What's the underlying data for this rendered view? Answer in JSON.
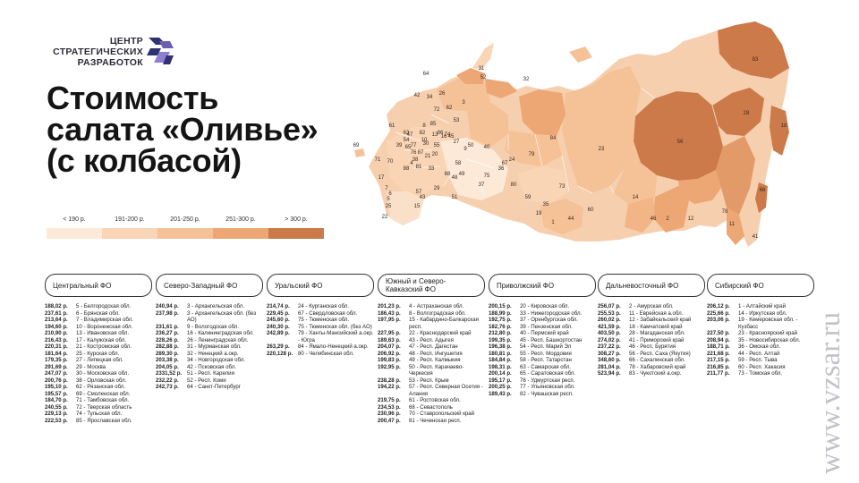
{
  "logo": {
    "line1": "ЦЕНТР",
    "line2": "СТРАТЕГИЧЕСКИХ",
    "line3": "РАЗРАБОТОК"
  },
  "title": {
    "line1": "Стоимость",
    "line2": "салата «Оливье»",
    "line3": "(с колбасой)"
  },
  "legend": [
    {
      "label": "< 190 р.",
      "color": "#fde9d8"
    },
    {
      "label": "191-200 р.",
      "color": "#f9d5b6"
    },
    {
      "label": "201-250 р.",
      "color": "#f5c197"
    },
    {
      "label": "251-300 р.",
      "color": "#eda775"
    },
    {
      "label": "> 300 р.",
      "color": "#cc7a49"
    }
  ],
  "watermark": "www.vzsar.ru",
  "map_labels": [
    "64",
    "42",
    "34",
    "26",
    "72",
    "62",
    "3",
    "52",
    "53",
    "45",
    "23",
    "31",
    "32",
    "83",
    "28",
    "18",
    "56",
    "14",
    "2",
    "78",
    "66",
    "46",
    "12",
    "11",
    "41",
    "84",
    "40",
    "67",
    "79",
    "73",
    "35",
    "19",
    "1",
    "60",
    "44",
    "59",
    "80",
    "24",
    "75",
    "36",
    "37",
    "68",
    "58",
    "74",
    "86",
    "88",
    "87",
    "21",
    "4",
    "20",
    "33",
    "48",
    "49",
    "43",
    "57",
    "15",
    "29",
    "69",
    "71",
    "17",
    "7",
    "6",
    "5",
    "25",
    "22",
    "61",
    "63",
    "82",
    "54",
    "77",
    "39",
    "47",
    "70",
    "65",
    "81",
    "30",
    "55",
    "16",
    "10",
    "76",
    "38",
    "50",
    "9",
    "27",
    "85",
    "8",
    "13",
    "51"
  ],
  "districts": [
    {
      "name": "Центральный ФО",
      "rows": [
        {
          "price": "188,02 р.",
          "region": "5 - Белгородская обл."
        },
        {
          "price": "237,61 р.",
          "region": "6 - Брянская обл."
        },
        {
          "price": "213,64 р.",
          "region": "7 - Владимирская обл."
        },
        {
          "price": "194,60 р.",
          "region": "10 - Воронежская обл."
        },
        {
          "price": "210,90 р.",
          "region": "13 - Ивановская обл."
        },
        {
          "price": "216,43 р.",
          "region": "17 - Калужская обл."
        },
        {
          "price": "220,31 р.",
          "region": "21 - Костромская обл."
        },
        {
          "price": "181,64 р.",
          "region": "25 - Курская обл."
        },
        {
          "price": "179,35 р.",
          "region": "27 - Липецкая обл."
        },
        {
          "price": "291,69 р.",
          "region": "29 - Москва"
        },
        {
          "price": "247,07 р.",
          "region": "30 - Московская обл."
        },
        {
          "price": "200,76 р.",
          "region": "38 - Орловская обл."
        },
        {
          "price": "195,10 р.",
          "region": "62 - Рязанская обл."
        },
        {
          "price": "195,57 р.",
          "region": "69 - Смоленская обл."
        },
        {
          "price": "184,70 р.",
          "region": "71 - Тамбовская обл."
        },
        {
          "price": "240,55 р.",
          "region": "72 - Тверская область"
        },
        {
          "price": "229,13 р.",
          "region": "74 - Тульская обл."
        },
        {
          "price": "222,53 р.",
          "region": "85 - Ярославская обл."
        }
      ]
    },
    {
      "name": "Северо-Западный ФО",
      "rows": [
        {
          "price": "240,94 р.",
          "region": "3 - Архангельская обл."
        },
        {
          "price": "237,98 р.",
          "region": "3 - Архангельская обл. (без АО)"
        },
        {
          "price": "231,61 р.",
          "region": "9 - Вологодская обл."
        },
        {
          "price": "236,27 р.",
          "region": "16 - Калининградская обл."
        },
        {
          "price": "228,26 р.",
          "region": "26 - Ленинградская обл."
        },
        {
          "price": "282,88 р.",
          "region": "31 - Мурманская обл."
        },
        {
          "price": "289,30 р.",
          "region": "32 - Ненецкий а.окр."
        },
        {
          "price": "203,38 р.",
          "region": "34 - Новгородская обл."
        },
        {
          "price": "204,05 р.",
          "region": "42 - Псковская обл."
        },
        {
          "price": "2331,52 р.",
          "region": "51 - Респ. Карелия"
        },
        {
          "price": "232,22 р.",
          "region": "52 - Респ. Коми"
        },
        {
          "price": "242,73 р.",
          "region": "64 - Санкт-Петербург"
        }
      ]
    },
    {
      "name": "Уральский ФО",
      "rows": [
        {
          "price": "214,74 р.",
          "region": "24 - Курганская обл."
        },
        {
          "price": "229,45 р.",
          "region": "67 - Свердловская обл."
        },
        {
          "price": "245,60 р.",
          "region": "75 - Тюменская обл."
        },
        {
          "price": "240,30 р.",
          "region": "75 - Тюменская обл. (без АО)"
        },
        {
          "price": "242,89 р.",
          "region": "79 - Ханты-Мансийский а.окр. - Югра"
        },
        {
          "price": "263,29 р.",
          "region": "84 - Ямало-Ненецкий а.окр."
        },
        {
          "price": "220,128 р.",
          "region": "80 - Челябинская обл."
        }
      ]
    },
    {
      "name": "Южный и Северо-Кавказский ФО",
      "rows": [
        {
          "price": "201,23 р.",
          "region": "4 - Астраханская обл."
        },
        {
          "price": "186,43 р.",
          "region": "8 - Волгоградская обл."
        },
        {
          "price": "197,95 р.",
          "region": "15 - Кабардино-Балкарская респ."
        },
        {
          "price": "227,95 р.",
          "region": "22 - Краснодарский край"
        },
        {
          "price": "189,63 р.",
          "region": "43 - Респ. Адыгея"
        },
        {
          "price": "204,07 р.",
          "region": "47 - Респ. Дагестан"
        },
        {
          "price": "206,92 р.",
          "region": "48 - Респ. Ингушетия"
        },
        {
          "price": "199,83 р.",
          "region": "49 - Респ. Калмыкия"
        },
        {
          "price": "192,95 р.",
          "region": "50 - Респ. Карачаево-Черкесия"
        },
        {
          "price": "238,28 р.",
          "region": "53 - Респ. Крым"
        },
        {
          "price": "194,22 р.",
          "region": "57 - Респ. Северная Осетия - Алания"
        },
        {
          "price": "219,75 р.",
          "region": "61 - Ростовская обл."
        },
        {
          "price": "234,53 р.",
          "region": "68 - Севастополь"
        },
        {
          "price": "230,96 р.",
          "region": "70 - Ставропольский край"
        },
        {
          "price": "200,47 р.",
          "region": "81 - Чеченская респ."
        }
      ]
    },
    {
      "name": "Приволжский ФО",
      "rows": [
        {
          "price": "200,15 р.",
          "region": "20 - Кировская обл."
        },
        {
          "price": "188,99 р.",
          "region": "33 - Нижегородская обл."
        },
        {
          "price": "192,75 р.",
          "region": "37 - Оренбургская обл."
        },
        {
          "price": "182,76 р.",
          "region": "39 - Пензенская обл."
        },
        {
          "price": "212,80 р.",
          "region": "40 - Пермский край"
        },
        {
          "price": "199,35 р.",
          "region": "45 - Респ. Башкортостан"
        },
        {
          "price": "196,38 р.",
          "region": "54 - Респ. Марий Эл"
        },
        {
          "price": "180,81 р.",
          "region": "55 - Респ. Мордовия"
        },
        {
          "price": "184,84 р.",
          "region": "58 - Респ. Татарстан"
        },
        {
          "price": "198,31 р.",
          "region": "63 - Самарская обл."
        },
        {
          "price": "200,14 р.",
          "region": "65 - Саратовская обл."
        },
        {
          "price": "195,17 р.",
          "region": "76 - Удмуртская респ."
        },
        {
          "price": "200,25 р.",
          "region": "77 - Ульяновская обл."
        },
        {
          "price": "189,43 р.",
          "region": "82 - Чувашская респ."
        }
      ]
    },
    {
      "name": "Дальневосточный ФО",
      "rows": [
        {
          "price": "256,07 р.",
          "region": "2 - Амурская обл."
        },
        {
          "price": "255,53 р.",
          "region": "11 - Еврейская а.обл."
        },
        {
          "price": "260,02 р.",
          "region": "12 - Забайкальский край"
        },
        {
          "price": "421,59 р.",
          "region": "18 - Камчатский край"
        },
        {
          "price": "403,50 р.",
          "region": "28 - Магаданская обл."
        },
        {
          "price": "274,02 р.",
          "region": "41 - Приморский край"
        },
        {
          "price": "237,22 р.",
          "region": "46 - Респ. Бурятия"
        },
        {
          "price": "308,27 р.",
          "region": "56 - Респ. Саха (Якутия)"
        },
        {
          "price": "348,60 р.",
          "region": "66 - Сахалинская обл."
        },
        {
          "price": "281,04 р.",
          "region": "78 - Хабаровский край"
        },
        {
          "price": "523,94 р.",
          "region": "83 - Чукотский а.окр."
        }
      ]
    },
    {
      "name": "Сибирский ФО",
      "rows": [
        {
          "price": "206,12 р.",
          "region": "1 - Алтайский край"
        },
        {
          "price": "225,66 р.",
          "region": "14 - Иркутская обл."
        },
        {
          "price": "203,06 р.",
          "region": "19 - Кемеровская обл. - Кузбасс"
        },
        {
          "price": "227,50 р.",
          "region": "23 - Красноярский край"
        },
        {
          "price": "208,94 р.",
          "region": "35 - Новосибирская обл."
        },
        {
          "price": "188,71 р.",
          "region": "36 - Омская обл."
        },
        {
          "price": "221,68 р.",
          "region": "44 - Респ. Алтай"
        },
        {
          "price": "217,15 р.",
          "region": "59 - Респ. Тыва"
        },
        {
          "price": "216,85 р.",
          "region": "60 - Респ. Хакасия"
        },
        {
          "price": "211,77 р.",
          "region": "73 - Томская обл."
        }
      ]
    }
  ]
}
